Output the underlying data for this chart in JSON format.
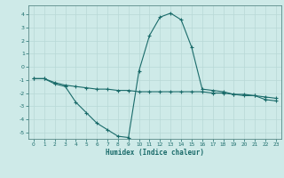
{
  "title": "",
  "xlabel": "Humidex (Indice chaleur)",
  "ylabel": "",
  "xlim": [
    -0.5,
    23.5
  ],
  "ylim": [
    -5.5,
    4.7
  ],
  "xticks": [
    0,
    1,
    2,
    3,
    4,
    5,
    6,
    7,
    8,
    9,
    10,
    11,
    12,
    13,
    14,
    15,
    16,
    17,
    18,
    19,
    20,
    21,
    22,
    23
  ],
  "yticks": [
    -5,
    -4,
    -3,
    -2,
    -1,
    0,
    1,
    2,
    3,
    4
  ],
  "bg_color": "#ceeae8",
  "grid_color": "#b8d8d6",
  "line_color": "#1a6b6a",
  "spine_color": "#5a8a88",
  "line1_x": [
    0,
    1,
    2,
    3,
    4,
    5,
    6,
    7,
    8,
    9,
    10,
    11,
    12,
    13,
    14,
    15,
    16,
    17,
    18,
    19,
    20,
    21,
    22,
    23
  ],
  "line1_y": [
    -0.9,
    -0.9,
    -1.3,
    -1.5,
    -2.7,
    -3.5,
    -4.3,
    -4.8,
    -5.3,
    -5.4,
    -0.3,
    2.4,
    3.8,
    4.1,
    3.6,
    1.5,
    -1.7,
    -1.8,
    -1.9,
    -2.1,
    -2.2,
    -2.2,
    -2.5,
    -2.6
  ],
  "line2_x": [
    0,
    1,
    2,
    3,
    4,
    5,
    6,
    7,
    8,
    9,
    10,
    11,
    12,
    13,
    14,
    15,
    16,
    17,
    18,
    19,
    20,
    21,
    22,
    23
  ],
  "line2_y": [
    -0.9,
    -0.9,
    -1.2,
    -1.4,
    -1.5,
    -1.6,
    -1.7,
    -1.7,
    -1.8,
    -1.8,
    -1.9,
    -1.9,
    -1.9,
    -1.9,
    -1.9,
    -1.9,
    -1.9,
    -2.0,
    -2.0,
    -2.1,
    -2.1,
    -2.2,
    -2.3,
    -2.4
  ],
  "figsize": [
    3.2,
    2.0
  ],
  "dpi": 100
}
